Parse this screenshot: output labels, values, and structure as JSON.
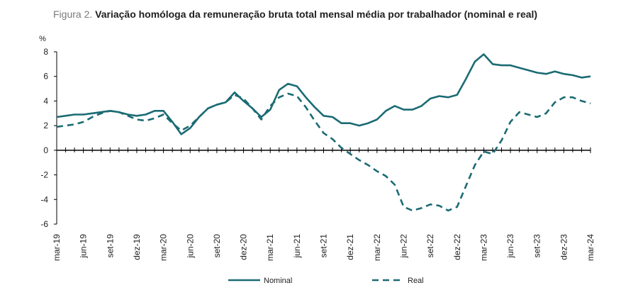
{
  "title": {
    "prefix": "Figura 2.",
    "text": "Variação homóloga da remuneração bruta total mensal média por trabalhador (nominal e real)"
  },
  "chart_data": {
    "type": "line",
    "title": "Figura 2. Variação homóloga da remuneração bruta total mensal média por trabalhador (nominal e real)",
    "ylabel": "%",
    "xlabel": "",
    "ylim": [
      -6,
      8
    ],
    "yticks": [
      8,
      6,
      4,
      2,
      0,
      -2,
      -4,
      -6
    ],
    "x": [
      "mar-19",
      "abr-19",
      "mai-19",
      "jun-19",
      "jul-19",
      "ago-19",
      "set-19",
      "out-19",
      "nov-19",
      "dez-19",
      "jan-20",
      "fev-20",
      "mar-20",
      "abr-20",
      "mai-20",
      "jun-20",
      "jul-20",
      "ago-20",
      "set-20",
      "out-20",
      "nov-20",
      "dez-20",
      "jan-21",
      "fev-21",
      "mar-21",
      "abr-21",
      "mai-21",
      "jun-21",
      "jul-21",
      "ago-21",
      "set-21",
      "out-21",
      "nov-21",
      "dez-21",
      "jan-22",
      "fev-22",
      "mar-22",
      "abr-22",
      "mai-22",
      "jun-22",
      "jul-22",
      "ago-22",
      "set-22",
      "out-22",
      "nov-22",
      "dez-22",
      "jan-23",
      "fev-23",
      "mar-23",
      "abr-23",
      "mai-23",
      "jun-23",
      "jul-23",
      "ago-23",
      "set-23",
      "out-23",
      "nov-23",
      "dez-23",
      "jan-24",
      "fev-24",
      "mar-24"
    ],
    "xtick_labels": [
      "mar-19",
      "jun-19",
      "set-19",
      "dez-19",
      "mar-20",
      "jun-20",
      "set-20",
      "dez-20",
      "mar-21",
      "jun-21",
      "set-21",
      "dez-21",
      "mar-22",
      "jun-22",
      "set-22",
      "dez-22",
      "mar-23",
      "jun-23",
      "set-23",
      "dez-23",
      "mar-24"
    ],
    "series": [
      {
        "name": "Nominal",
        "color": "#1b6b73",
        "style": "solid",
        "values": [
          2.7,
          2.8,
          2.9,
          2.9,
          3.0,
          3.1,
          3.2,
          3.1,
          2.9,
          2.8,
          2.9,
          3.2,
          3.2,
          2.3,
          1.3,
          1.8,
          2.7,
          3.4,
          3.7,
          3.9,
          4.7,
          4.0,
          3.4,
          2.7,
          3.3,
          4.9,
          5.4,
          5.2,
          4.3,
          3.5,
          2.8,
          2.7,
          2.2,
          2.2,
          2.0,
          2.2,
          2.5,
          3.2,
          3.6,
          3.3,
          3.3,
          3.6,
          4.2,
          4.4,
          4.3,
          4.5,
          5.8,
          7.2,
          7.8,
          7.0,
          6.9,
          6.9,
          6.7,
          6.5,
          6.3,
          6.2,
          6.4,
          6.2,
          6.1,
          5.9,
          6.0
        ]
      },
      {
        "name": "Real",
        "color": "#1b6b73",
        "style": "dashed",
        "values": [
          1.9,
          2.0,
          2.1,
          2.3,
          2.7,
          3.0,
          3.2,
          3.1,
          2.8,
          2.5,
          2.4,
          2.6,
          2.9,
          2.2,
          1.6,
          2.0,
          2.7,
          3.4,
          3.7,
          3.9,
          4.5,
          4.2,
          3.4,
          2.5,
          3.6,
          4.3,
          4.6,
          4.4,
          3.5,
          2.4,
          1.4,
          0.9,
          0.2,
          -0.3,
          -0.8,
          -1.2,
          -1.7,
          -2.1,
          -2.8,
          -4.6,
          -4.9,
          -4.7,
          -4.4,
          -4.5,
          -4.9,
          -4.6,
          -2.9,
          -1.2,
          -0.1,
          -0.3,
          0.8,
          2.3,
          3.1,
          2.9,
          2.7,
          3.0,
          3.9,
          4.3,
          4.3,
          4.0,
          3.8
        ]
      }
    ],
    "legend": {
      "position": "bottom",
      "entries": [
        "Nominal",
        "Real"
      ]
    },
    "grid": false
  }
}
